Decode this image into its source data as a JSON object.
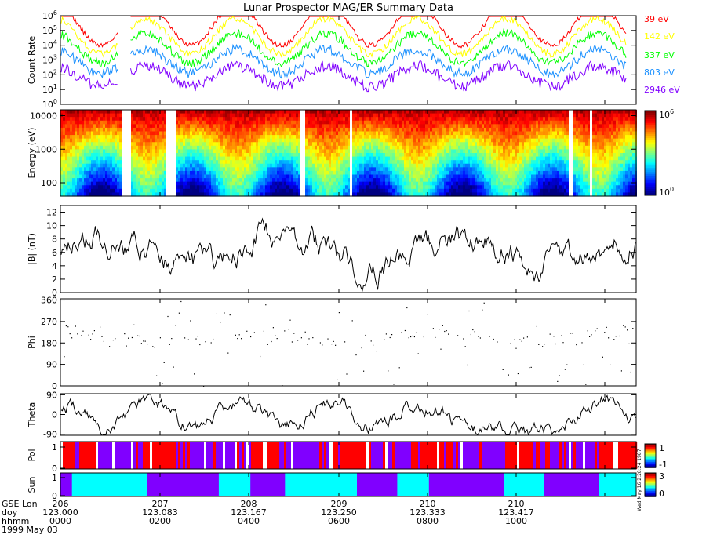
{
  "title": "Lunar Prospector MAG/ER Summary Data",
  "stamp": "Wed May 16 2:28:24 1987",
  "time_axis": {
    "rows": [
      {
        "label": "GSE Lon",
        "ticks": [
          "206",
          "207",
          "208",
          "209",
          "210",
          "210"
        ]
      },
      {
        "label": "doy",
        "ticks": [
          "123.000",
          "123.083",
          "123.167",
          "123.250",
          "123.333",
          "123.417"
        ]
      },
      {
        "label": "hhmm",
        "ticks": [
          "0000",
          "0200",
          "0400",
          "0600",
          "0800",
          "1000"
        ]
      }
    ],
    "date": "1999 May 03"
  },
  "chart_data": [
    {
      "type": "line",
      "name": "count-rate",
      "ylabel": "Count Rate",
      "yscale": "log",
      "ylim": [
        1,
        1000000
      ],
      "ytick_labels": [
        "10^0",
        "10^1",
        "10^2",
        "10^3",
        "10^4",
        "10^5",
        "10^6"
      ],
      "series": [
        {
          "name": "39 eV",
          "color": "#ff0000",
          "base": 5.4,
          "amp": 1.4
        },
        {
          "name": "142 eV",
          "color": "#ffff00",
          "base": 4.6,
          "amp": 1.2
        },
        {
          "name": "337 eV",
          "color": "#00ff00",
          "base": 3.8,
          "amp": 1.0
        },
        {
          "name": "803 eV",
          "color": "#1a90ff",
          "base": 2.9,
          "amp": 0.8
        },
        {
          "name": "2946 eV",
          "color": "#8000ff",
          "base": 1.9,
          "amp": 0.7
        }
      ]
    },
    {
      "type": "heatmap",
      "name": "energy-spectrogram",
      "ylabel": "Energy (eV)",
      "yscale": "log",
      "ylim": [
        40,
        15000
      ],
      "ytick_labels": [
        "100",
        "1000",
        "10000"
      ],
      "colorbar": {
        "min_label": "10^0",
        "max_label": "10^6"
      }
    },
    {
      "type": "line",
      "name": "field-magnitude",
      "ylabel": "|B| (nT)",
      "ylim": [
        0,
        13
      ],
      "ytick_labels": [
        "0",
        "2",
        "4",
        "6",
        "8",
        "10",
        "12"
      ]
    },
    {
      "type": "scatter",
      "name": "phi",
      "ylabel": "Phi",
      "ylim": [
        0,
        365
      ],
      "ytick_labels": [
        "0",
        "90",
        "180",
        "270",
        "360"
      ]
    },
    {
      "type": "line",
      "name": "theta",
      "ylabel": "Theta",
      "ylim": [
        -95,
        95
      ],
      "ytick_labels": [
        "-90",
        "0",
        "90"
      ]
    },
    {
      "type": "heatmap",
      "name": "polarity",
      "ylabel": "Pol",
      "ytick_labels": [
        "0",
        "1"
      ],
      "colorbar": {
        "max_label": "1",
        "min_label": "-1"
      }
    },
    {
      "type": "heatmap",
      "name": "sun",
      "ylabel": "Sun",
      "ytick_labels": [
        "0",
        "1"
      ],
      "colorbar": {
        "max_label": "3",
        "min_label": "0"
      },
      "segments": [
        {
          "value": 0,
          "start": 0.0,
          "end": 0.02
        },
        {
          "value": 3,
          "start": 0.02,
          "end": 0.15
        },
        {
          "value": 0,
          "start": 0.15,
          "end": 0.275
        },
        {
          "value": 3,
          "start": 0.275,
          "end": 0.33
        },
        {
          "value": 0,
          "start": 0.33,
          "end": 0.39
        },
        {
          "value": 3,
          "start": 0.39,
          "end": 0.515
        },
        {
          "value": 0,
          "start": 0.515,
          "end": 0.585
        },
        {
          "value": 3,
          "start": 0.585,
          "end": 0.64
        },
        {
          "value": 0,
          "start": 0.64,
          "end": 0.77
        },
        {
          "value": 3,
          "start": 0.77,
          "end": 0.84
        },
        {
          "value": 0,
          "start": 0.84,
          "end": 0.935
        },
        {
          "value": 3,
          "start": 0.935,
          "end": 1.0
        }
      ]
    }
  ]
}
